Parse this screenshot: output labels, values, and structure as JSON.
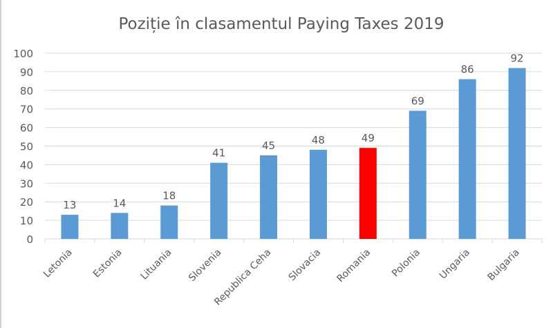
{
  "chart_data": {
    "type": "bar",
    "title": "Poziție în clasamentul Paying Taxes 2019",
    "categories": [
      "Letonia",
      "Estonia",
      "Lituania",
      "Slovenia",
      "Republica Ceha",
      "Slovacia",
      "Romania",
      "Polonia",
      "Ungaria",
      "Bulgaria"
    ],
    "values": [
      13,
      14,
      18,
      41,
      45,
      48,
      49,
      69,
      86,
      92
    ],
    "data_labels": [
      "13",
      "14",
      "18",
      "41",
      "45",
      "48",
      "49",
      "69",
      "86",
      "92"
    ],
    "ylim": [
      0,
      100
    ],
    "yticks": [
      "0",
      "10",
      "20",
      "30",
      "40",
      "50",
      "60",
      "70",
      "80",
      "90",
      "100"
    ],
    "grid": true,
    "colors": {
      "default": "#5b9bd5",
      "highlight": "#ff0000",
      "highlight_category": "Romania",
      "grid": "#d9d9d9",
      "text": "#595959"
    }
  }
}
